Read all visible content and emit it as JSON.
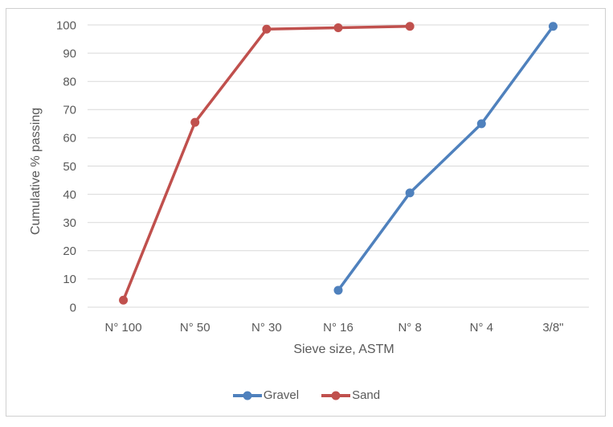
{
  "chart_data": {
    "type": "line",
    "xlabel": "Sieve size, ASTM",
    "ylabel": "Cumulative % passing",
    "categories": [
      "N° 100",
      "N° 50",
      "N° 30",
      "N° 16",
      "N° 8",
      "N° 4",
      "3/8\""
    ],
    "yticks": [
      0,
      10,
      20,
      30,
      40,
      50,
      60,
      70,
      80,
      90,
      100
    ],
    "ylim": [
      0,
      100
    ],
    "grid": "horizontal",
    "legend_position": "bottom-center",
    "series": [
      {
        "name": "Gravel",
        "color": "#4f81bd",
        "values": [
          null,
          null,
          null,
          6,
          40.5,
          65,
          99.5
        ]
      },
      {
        "name": "Sand",
        "color": "#c0504d",
        "values": [
          2.5,
          65.5,
          98.5,
          99,
          99.5,
          null,
          null
        ]
      }
    ],
    "styles": {
      "gridline_color": "#d9d9d9",
      "text_color": "#595959",
      "border_color": "#d0d0d0"
    }
  }
}
